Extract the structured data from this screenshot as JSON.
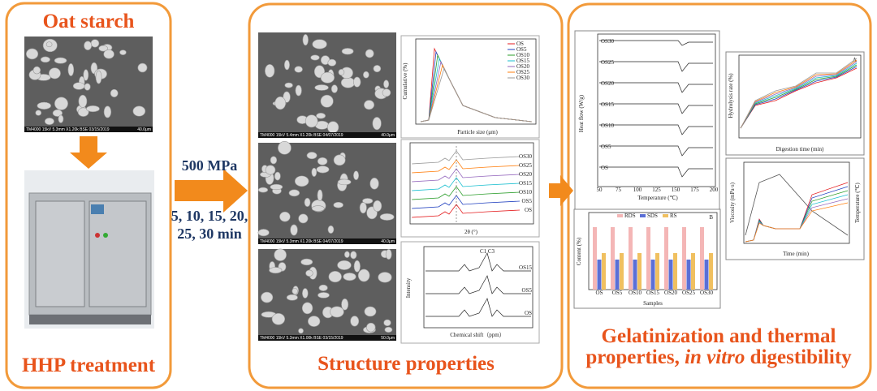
{
  "raw_material": {
    "title": "Oat starch",
    "sem_caption": "TM4000 15kV 5.3mm X1.20k BSE 03/15/2019",
    "sem_scale": "40.0μm"
  },
  "treatment": {
    "title": "HHP treatment",
    "pressure": "500 MPa",
    "times_line1": "5, 10, 15, 20,",
    "times_line2": "25, 30 min"
  },
  "structure": {
    "title": "Structure properties",
    "sem_captions": [
      "TM4000 15kV 5.4mm X1.20k BSE 04/07/2019",
      "TM4000 15kV 5.3mm X1.20k BSE 04/07/2019",
      "TM4000 15kV 5.3mm X1.00k BSE 03/15/2019"
    ],
    "sem_scales": [
      "40.0μm",
      "40.0μm",
      "50.0μm"
    ],
    "psd": {
      "x_label": "Particle size (μm)",
      "y_label": "Cumulative (%)",
      "legend": [
        "OS",
        "OS5",
        "OS10",
        "OS15",
        "OS20",
        "OS25",
        "OS30"
      ]
    },
    "xrd": {
      "x_label": "2θ (°)",
      "samples": [
        "OS30",
        "OS25",
        "OS20",
        "OS15",
        "OS10",
        "OS5",
        "OS"
      ]
    },
    "nmr": {
      "x_label": "Chemical shift（ppm）",
      "y_label": "Intensity",
      "samples": [
        "OS15",
        "OS5",
        "OS"
      ],
      "peak": "C1 C3"
    }
  },
  "properties": {
    "title_line1": "Gelatinization and thermal",
    "title_line2a": "properties,",
    "title_line2b": "in vitro",
    "title_line2c": "digestibility",
    "dsc": {
      "x_label": "Temperature (℃)",
      "y_label": "Heat flow (W/g)",
      "samples": [
        "OS30",
        "OS25",
        "OS20",
        "OS15",
        "OS10",
        "OS5",
        "OS"
      ],
      "xticks": [
        "50",
        "75",
        "100",
        "125",
        "150",
        "175",
        "200"
      ]
    },
    "digestion": {
      "x_label": "Digestion time (min)",
      "y_label": "Hydrolysis rate (%)",
      "panel": "A"
    },
    "starch_fractions": {
      "x_label": "Samples",
      "y_label": "Content (%)",
      "legend": [
        "RDS",
        "SDS",
        "RS"
      ],
      "panel": "B",
      "categories": [
        "OS",
        "OS5",
        "OS10",
        "OS15",
        "OS20",
        "OS25",
        "OS30"
      ]
    },
    "pasting": {
      "x_label": "Time (min)",
      "y_label": "Viscosity (mPa·s)",
      "y2_label": "Temperature (℃)"
    }
  }
}
